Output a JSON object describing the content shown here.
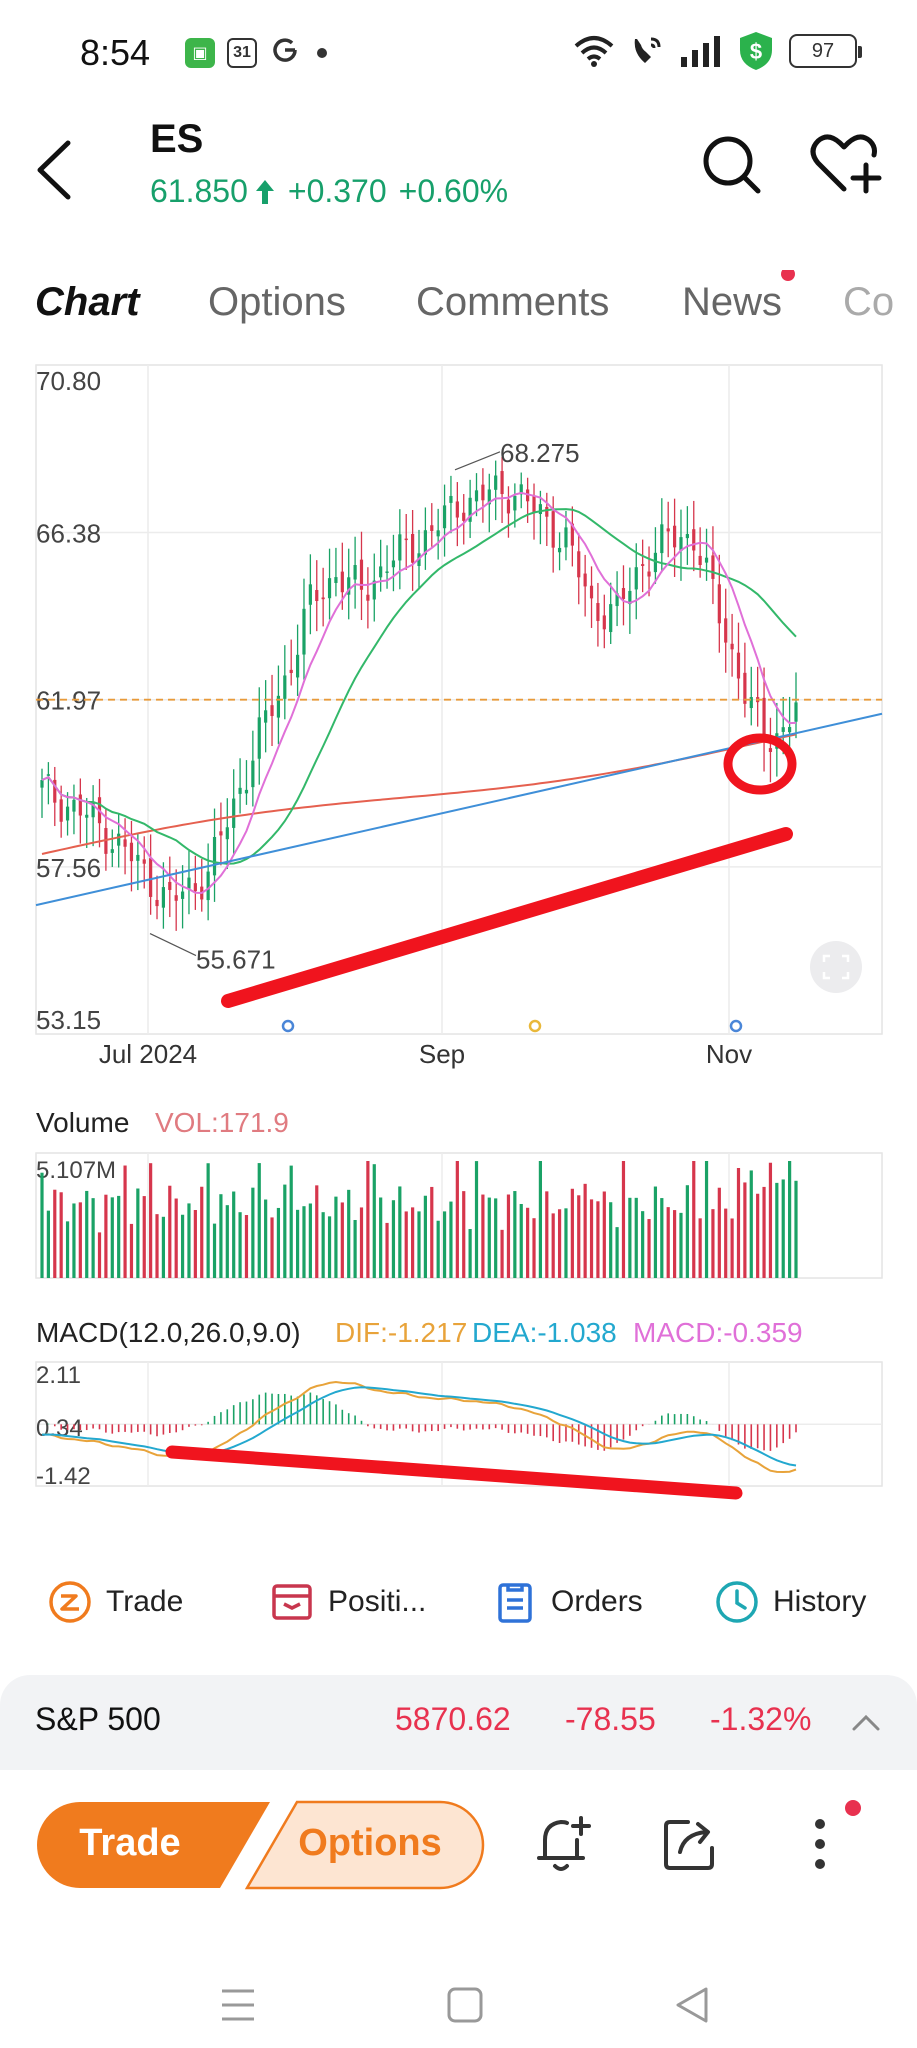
{
  "status_bar": {
    "time": "8:54",
    "calendar_day": "31",
    "battery": "97",
    "colors": {
      "app1": "#3db54a",
      "shield": "#2bb24c"
    }
  },
  "header": {
    "symbol": "ES",
    "price": "61.850",
    "change": "+0.370",
    "change_pct": "+0.60%",
    "up_color": "#17a06b",
    "icons": [
      "back-arrow-icon",
      "search-icon",
      "heart-plus-icon"
    ]
  },
  "tabs": [
    {
      "label": "Chart",
      "active": true
    },
    {
      "label": "Options",
      "active": false
    },
    {
      "label": "Comments",
      "active": false
    },
    {
      "label": "News",
      "active": false,
      "badge": true
    },
    {
      "label": "Co",
      "active": false
    }
  ],
  "chart_data": {
    "type": "candlestick",
    "y_ticks": [
      "70.80",
      "66.38",
      "61.97",
      "57.56",
      "53.15"
    ],
    "ylim": [
      53.15,
      70.8
    ],
    "x_ticks": [
      "Jul 2024",
      "Sep",
      "Nov"
    ],
    "high_label": "68.275",
    "low_label": "55.671",
    "current_line": 61.97,
    "volume": {
      "label": "Volume",
      "vol_text": "VOL:171.9",
      "max_label": "5.107M"
    },
    "macd": {
      "label": "MACD(12.0,26.0,9.0)",
      "dif": "DIF:-1.217",
      "dea": "DEA:-1.038",
      "macd": "MACD:-0.359",
      "ticks": [
        "2.11",
        "0.34",
        "-1.42"
      ]
    },
    "colors": {
      "up": "#1aa266",
      "down": "#d6364c",
      "ma_pink": "#e070d8",
      "ma_green": "#33b86a",
      "ma_red": "#e5604f",
      "trend_blue": "#3f8fd8",
      "dif": "#e8a33a",
      "dea": "#23a8cf",
      "annot": "#f0141e"
    }
  },
  "quick_actions": [
    {
      "label": "Trade",
      "icon": "trade-icon"
    },
    {
      "label": "Positi...",
      "icon": "positions-icon"
    },
    {
      "label": "Orders",
      "icon": "orders-icon"
    },
    {
      "label": "History",
      "icon": "history-icon"
    }
  ],
  "index_bar": {
    "name": "S&P 500",
    "value": "5870.62",
    "change": "-78.55",
    "change_pct": "-1.32%"
  },
  "bottom_bar": {
    "trade_label": "Trade",
    "options_label": "Options",
    "accent": "#f07b1e"
  }
}
